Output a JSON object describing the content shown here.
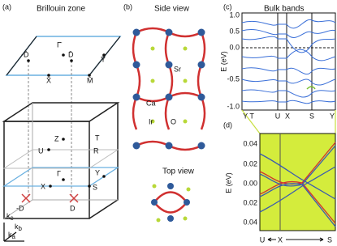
{
  "panels": {
    "a": {
      "label": "(a)",
      "title": "Brillouin zone",
      "surface_points": [
        "Γ̄",
        "-D̄",
        "D̄",
        "Ȳ",
        "X̄",
        "M̄"
      ],
      "bulk_points": [
        "Z",
        "T",
        "U",
        "R",
        "Γ",
        "Y",
        "X",
        "S",
        "-D",
        "D"
      ],
      "axes": [
        {
          "main": "k",
          "sub": "c"
        },
        {
          "main": "k",
          "sub": "b"
        },
        {
          "main": "k",
          "sub": "a"
        }
      ]
    },
    "b": {
      "label": "(b)",
      "side_title": "Side view",
      "top_title": "Top view",
      "atoms": [
        "Sr",
        "Ca",
        "Ir",
        "O"
      ]
    },
    "c": {
      "label": "(c)",
      "title": "Bulk bands",
      "ylabel": "E (eV)",
      "yticks": [
        "1.0",
        "0.5",
        "0.0",
        "-0.5",
        "-1.0"
      ],
      "xticks": [
        "Y T",
        "U",
        "X",
        "S",
        "Y"
      ]
    },
    "d": {
      "label": "(d)",
      "ylabel": "E (eV)",
      "yticks": [
        "0.04",
        "0.02",
        "0.00",
        "0.02",
        "0.04"
      ],
      "xticks": [
        "U",
        "X",
        "S"
      ]
    }
  }
}
